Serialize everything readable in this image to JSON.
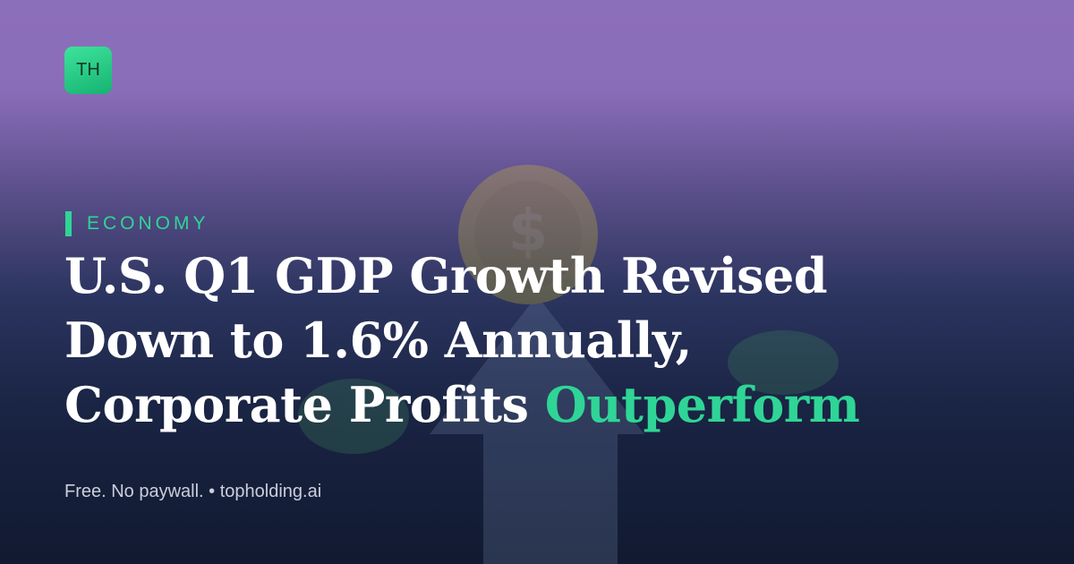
{
  "logo": "TH",
  "category": "ECONOMY",
  "headline": {
    "lines": [
      "U.S. Q1 GDP Growth Revised",
      "Down to 1.6% Annually,",
      "Corporate Profits"
    ],
    "highlight": "Outperform"
  },
  "footer": "Free. No paywall. • topholding.ai"
}
